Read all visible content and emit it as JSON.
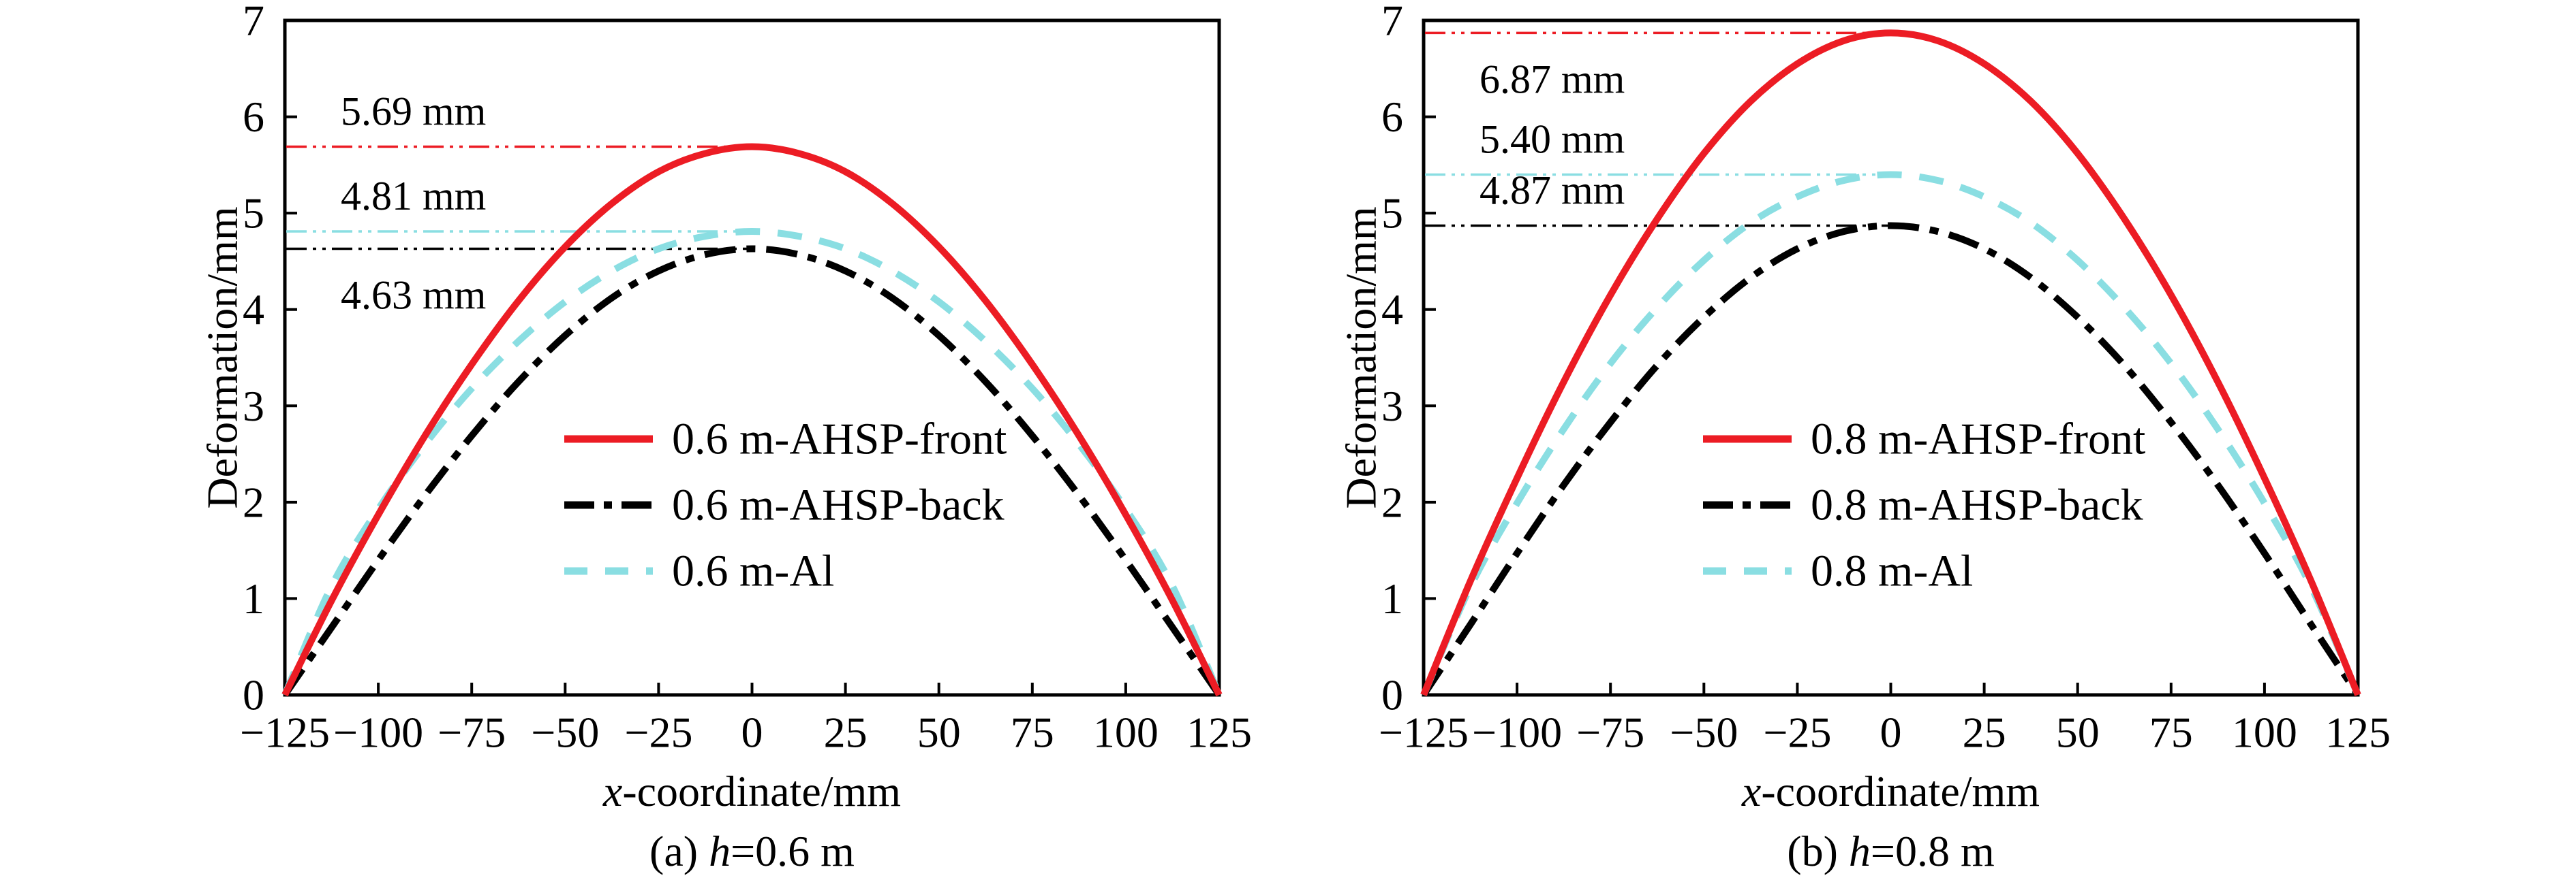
{
  "figure": {
    "background": "#ffffff",
    "axis_color": "#000000",
    "text_color": "#000000"
  },
  "chart_data": [
    {
      "type": "line",
      "caption": {
        "pre": "(a) ",
        "italic": "h",
        "post": "=0.6 m"
      },
      "xlabel": {
        "italic": "x",
        "post": "-coordinate/mm"
      },
      "ylabel": "Deformation/mm",
      "xlim": [
        -125,
        125
      ],
      "ylim": [
        0,
        7
      ],
      "xticks": [
        -125,
        -100,
        -75,
        -50,
        -25,
        0,
        25,
        50,
        75,
        100,
        125
      ],
      "xtick_labels": [
        "−125",
        "−100",
        "−75",
        "−50",
        "−25",
        "0",
        "25",
        "50",
        "75",
        "100",
        "125"
      ],
      "yticks": [
        0,
        1,
        2,
        3,
        4,
        5,
        6,
        7
      ],
      "ytick_labels": [
        "0",
        "1",
        "2",
        "3",
        "4",
        "5",
        "6",
        "7"
      ],
      "grid": false,
      "legend_position": "center-below-middle",
      "x": [
        -125,
        -112.5,
        -100,
        -87.5,
        -75,
        -62.5,
        -50,
        -37.5,
        -25,
        -12.5,
        0,
        12.5,
        25,
        37.5,
        50,
        62.5,
        75,
        87.5,
        100,
        112.5,
        125
      ],
      "series": [
        {
          "name": "0.6 m-AHSP-front",
          "color": "#EC1C24",
          "dash": "solid",
          "peak_value": 5.69,
          "values": [
            0,
            0.98,
            1.87,
            2.69,
            3.43,
            4.09,
            4.65,
            5.1,
            5.43,
            5.62,
            5.69,
            5.62,
            5.43,
            5.1,
            4.65,
            4.09,
            3.43,
            2.69,
            1.87,
            0.98,
            0
          ]
        },
        {
          "name": "0.6 m-AHSP-back",
          "color": "#000000",
          "dash": "dashdot",
          "peak_value": 4.63,
          "values": [
            0,
            0.7,
            1.4,
            2.07,
            2.69,
            3.25,
            3.73,
            4.12,
            4.4,
            4.57,
            4.63,
            4.57,
            4.4,
            4.12,
            3.73,
            3.25,
            2.69,
            2.07,
            1.4,
            0.7,
            0
          ]
        },
        {
          "name": "0.6 m-Al",
          "color": "#8ADEE2",
          "dash": "dashed",
          "peak_value": 4.81,
          "values": [
            0,
            1.13,
            1.93,
            2.6,
            3.18,
            3.67,
            4.08,
            4.4,
            4.63,
            4.76,
            4.81,
            4.76,
            4.63,
            4.4,
            4.08,
            3.67,
            3.18,
            2.6,
            1.93,
            1.13,
            0
          ]
        }
      ],
      "annotations": [
        {
          "text": "5.69 mm",
          "value": 5.69,
          "color": "#EC1C24",
          "label_side": "above"
        },
        {
          "text": "4.81 mm",
          "value": 4.81,
          "color": "#8ADEE2",
          "label_side": "above"
        },
        {
          "text": "4.63 mm",
          "value": 4.63,
          "color": "#000000",
          "label_side": "below"
        }
      ]
    },
    {
      "type": "line",
      "caption": {
        "pre": "(b) ",
        "italic": "h",
        "post": "=0.8 m"
      },
      "xlabel": {
        "italic": "x",
        "post": "-coordinate/mm"
      },
      "ylabel": "Deformation/mm",
      "xlim": [
        -125,
        125
      ],
      "ylim": [
        0,
        7
      ],
      "xticks": [
        -125,
        -100,
        -75,
        -50,
        -25,
        0,
        25,
        50,
        75,
        100,
        125
      ],
      "xtick_labels": [
        "−125",
        "−100",
        "−75",
        "−50",
        "−25",
        "0",
        "25",
        "50",
        "75",
        "100",
        "125"
      ],
      "yticks": [
        0,
        1,
        2,
        3,
        4,
        5,
        6,
        7
      ],
      "ytick_labels": [
        "0",
        "1",
        "2",
        "3",
        "4",
        "5",
        "6",
        "7"
      ],
      "grid": false,
      "legend_position": "center-below-middle",
      "x": [
        -125,
        -112.5,
        -100,
        -87.5,
        -75,
        -62.5,
        -50,
        -37.5,
        -25,
        -12.5,
        0,
        12.5,
        25,
        37.5,
        50,
        62.5,
        75,
        87.5,
        100,
        112.5,
        125
      ],
      "series": [
        {
          "name": "0.8 m-AHSP-front",
          "color": "#EC1C24",
          "dash": "solid",
          "peak_value": 6.87,
          "values": [
            0,
            1.18,
            2.25,
            3.25,
            4.15,
            4.94,
            5.62,
            6.16,
            6.55,
            6.79,
            6.87,
            6.79,
            6.55,
            6.16,
            5.62,
            4.94,
            4.15,
            3.25,
            2.25,
            1.18,
            0
          ]
        },
        {
          "name": "0.8 m-AHSP-back",
          "color": "#000000",
          "dash": "dashdot",
          "peak_value": 4.87,
          "values": [
            0,
            0.73,
            1.47,
            2.18,
            2.83,
            3.42,
            3.92,
            4.33,
            4.63,
            4.81,
            4.87,
            4.81,
            4.63,
            4.33,
            3.92,
            3.42,
            2.83,
            2.18,
            1.47,
            0.73,
            0
          ]
        },
        {
          "name": "0.8 m-Al",
          "color": "#8ADEE2",
          "dash": "dashed",
          "peak_value": 5.4,
          "values": [
            0,
            1.12,
            1.99,
            2.76,
            3.44,
            4.02,
            4.51,
            4.9,
            5.17,
            5.34,
            5.4,
            5.34,
            5.17,
            4.9,
            4.51,
            4.02,
            3.44,
            2.76,
            1.99,
            1.12,
            0
          ]
        }
      ],
      "annotations": [
        {
          "text": "6.87 mm",
          "value": 6.87,
          "color": "#EC1C24",
          "label_side": "below"
        },
        {
          "text": "5.40 mm",
          "value": 5.4,
          "color": "#8ADEE2",
          "label_side": "above"
        },
        {
          "text": "4.87 mm",
          "value": 4.87,
          "color": "#000000",
          "label_side": "above"
        }
      ]
    }
  ]
}
